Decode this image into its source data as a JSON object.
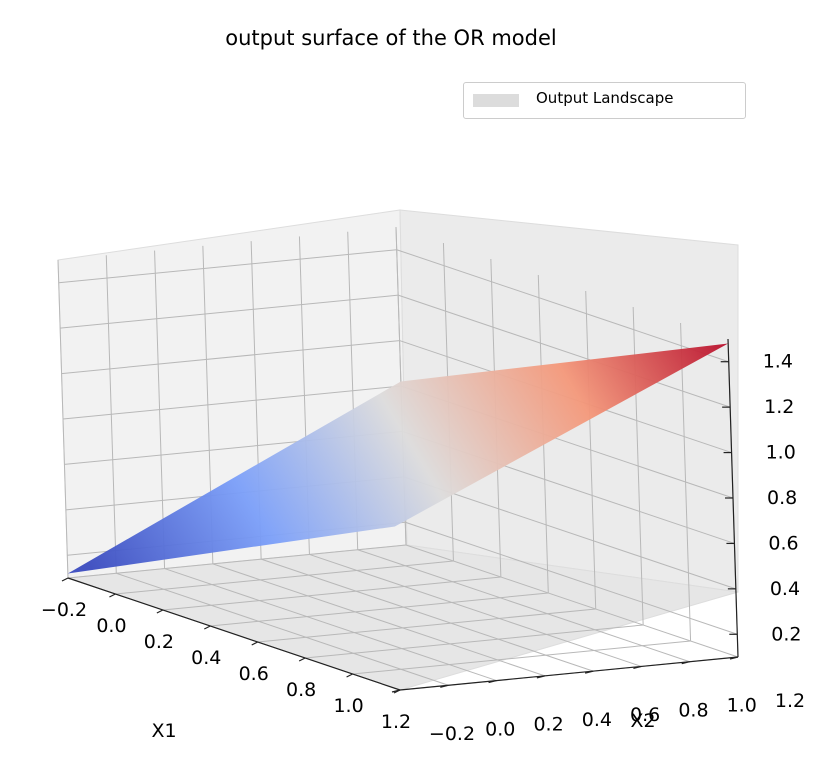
{
  "title": "output surface of the OR model",
  "legend": {
    "label": "Output Landscape",
    "swatch_color": "#dcdcdc",
    "placement": "upper-right"
  },
  "chart_data": {
    "type": "surface",
    "title": "output surface of the OR model",
    "xlabel": "X1",
    "ylabel": "X2",
    "zlabel": "",
    "colormap": "coolwarm",
    "xlim": [
      -0.2,
      1.2
    ],
    "ylim": [
      -0.2,
      1.2
    ],
    "zlim": [
      0.1,
      1.5
    ],
    "x_ticks": [
      "−0.2",
      "0.0",
      "0.2",
      "0.4",
      "0.6",
      "0.8",
      "1.0",
      "1.2"
    ],
    "y_ticks": [
      "−0.2",
      "0.0",
      "0.2",
      "0.4",
      "0.6",
      "0.8",
      "1.0",
      "1.2"
    ],
    "z_ticks": [
      "0.2",
      "0.4",
      "0.6",
      "0.8",
      "1.0",
      "1.2",
      "1.4"
    ],
    "grid": true,
    "series": [
      {
        "corners": [
          {
            "x": -0.2,
            "y": -0.2,
            "z": 0.12
          },
          {
            "x": 1.2,
            "y": -0.2,
            "z": 0.82
          },
          {
            "x": -0.2,
            "y": 1.2,
            "z": 0.82
          },
          {
            "x": 1.2,
            "y": 1.2,
            "z": 1.48
          }
        ]
      }
    ]
  }
}
